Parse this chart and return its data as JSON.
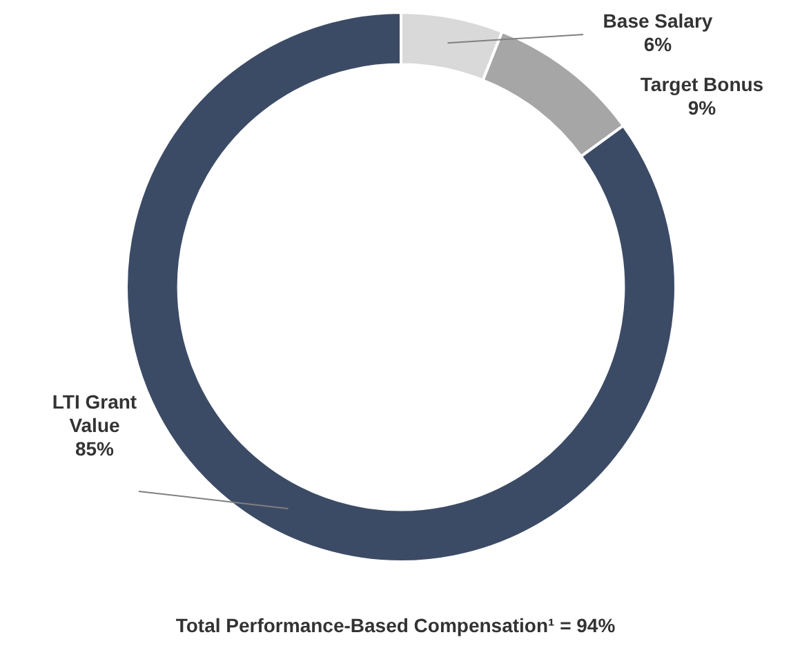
{
  "chart_data": {
    "type": "donut",
    "categories": [
      "Base Salary",
      "Target Bonus",
      "LTI Grant Value"
    ],
    "values": [
      6,
      9,
      85
    ],
    "value_labels": [
      "6%",
      "9%",
      "85%"
    ],
    "colors": [
      "#d9d9d9",
      "#a6a6a6",
      "#3c4b65"
    ],
    "legend": false,
    "annotations": [
      "Total Performance-Based Compensation¹ = 94%"
    ]
  }
}
